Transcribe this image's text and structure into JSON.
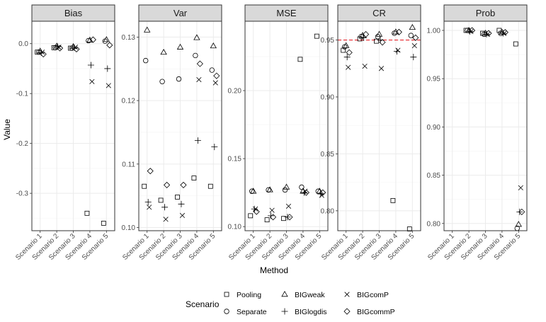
{
  "chart_data": {
    "type": "scatter",
    "xlabel": "Method",
    "ylabel": "Value",
    "categories": [
      "Scenario 1",
      "Scenario 2",
      "Scenario 3",
      "Scenario 4",
      "Scenario 5"
    ],
    "legend": {
      "title": "Scenario",
      "placement": "bottom",
      "entries": [
        {
          "name": "Pooling",
          "shape": "square"
        },
        {
          "name": "Separate",
          "shape": "circle"
        },
        {
          "name": "BIGweak",
          "shape": "triangle"
        },
        {
          "name": "BIGlogdis",
          "shape": "plus"
        },
        {
          "name": "BIGcomP",
          "shape": "cross"
        },
        {
          "name": "BIGcommP",
          "shape": "diamond"
        }
      ]
    },
    "reference_line": {
      "panel": "CR",
      "y": 0.95,
      "color": "#e8242b",
      "style": "dashed"
    },
    "colors": {
      "strip_bg": "#d9d9d9",
      "panel_border": "#333333",
      "grid_major": "#ebebeb",
      "grid_minor": "#f5f5f5",
      "marker": "#000000"
    },
    "panels": [
      {
        "title": "Bias",
        "ylim": [
          -0.375,
          0.045
        ],
        "yticks": [
          0.0,
          -0.1,
          -0.2,
          -0.3
        ],
        "ytick_labels": [
          "0.0",
          "-0.1",
          "-0.2",
          "-0.3"
        ],
        "series": [
          {
            "name": "Pooling",
            "values": [
              -0.017,
              -0.008,
              -0.009,
              -0.34,
              -0.36
            ]
          },
          {
            "name": "Separate",
            "values": [
              -0.017,
              -0.008,
              -0.009,
              0.006,
              0.005
            ]
          },
          {
            "name": "BIGweak",
            "values": [
              -0.015,
              -0.005,
              -0.006,
              0.007,
              0.008
            ]
          },
          {
            "name": "BIGlogdis",
            "values": [
              -0.018,
              -0.006,
              -0.008,
              -0.043,
              -0.05
            ]
          },
          {
            "name": "BIGcomP",
            "values": [
              -0.017,
              -0.007,
              -0.007,
              -0.076,
              -0.084
            ]
          },
          {
            "name": "BIGcommP",
            "values": [
              -0.021,
              -0.009,
              -0.011,
              0.008,
              -0.003
            ]
          }
        ]
      },
      {
        "title": "Var",
        "ylim": [
          0.0995,
          0.1325
        ],
        "yticks": [
          0.1,
          0.11,
          0.12,
          0.13
        ],
        "ytick_labels": [
          "0.10",
          "0.11",
          "0.12",
          "0.13"
        ],
        "series": [
          {
            "name": "Pooling",
            "values": [
              0.1065,
              0.1043,
              0.1048,
              0.1078,
              0.1065
            ]
          },
          {
            "name": "Separate",
            "values": [
              0.1263,
              0.123,
              0.1234,
              0.1271,
              0.1248
            ]
          },
          {
            "name": "BIGweak",
            "values": [
              0.1311,
              0.1276,
              0.1284,
              0.1299,
              0.1286
            ]
          },
          {
            "name": "BIGlogdis",
            "values": [
              0.104,
              0.1032,
              0.1037,
              0.1137,
              0.1127
            ]
          },
          {
            "name": "BIGcomP",
            "values": [
              0.1032,
              0.1013,
              0.1019,
              0.1233,
              0.1228
            ]
          },
          {
            "name": "BIGcommP",
            "values": [
              0.1089,
              0.1067,
              0.1067,
              0.1258,
              0.1239
            ]
          }
        ]
      },
      {
        "title": "MSE",
        "ylim": [
          0.097,
          0.251
        ],
        "yticks": [
          0.1,
          0.15,
          0.2
        ],
        "ytick_labels": [
          "0.10",
          "0.15",
          "0.20"
        ],
        "series": [
          {
            "name": "Pooling",
            "values": [
              0.108,
              0.105,
              0.106,
              0.223,
              0.24
            ]
          },
          {
            "name": "Separate",
            "values": [
              0.126,
              0.127,
              0.127,
              0.129,
              0.126
            ]
          },
          {
            "name": "BIGweak",
            "values": [
              0.126,
              0.127,
              0.129,
              0.126,
              0.126
            ]
          },
          {
            "name": "BIGlogdis",
            "values": [
              0.113,
              0.108,
              0.107,
              0.125,
              0.124
            ]
          },
          {
            "name": "BIGcomP",
            "values": [
              0.113,
              0.112,
              0.115,
              0.126,
              0.123
            ]
          },
          {
            "name": "BIGcommP",
            "values": [
              0.111,
              0.107,
              0.107,
              0.125,
              0.125
            ]
          }
        ]
      },
      {
        "title": "CR",
        "ylim": [
          0.7825,
          0.9665
        ],
        "yticks": [
          0.8,
          0.85,
          0.9,
          0.95
        ],
        "ytick_labels": [
          "0.80",
          "0.85",
          "0.90",
          "0.95"
        ],
        "series": [
          {
            "name": "Pooling",
            "values": [
              0.941,
              0.951,
              0.949,
              0.809,
              0.784
            ]
          },
          {
            "name": "Separate",
            "values": [
              0.944,
              0.953,
              0.953,
              0.956,
              0.954
            ]
          },
          {
            "name": "BIGweak",
            "values": [
              0.945,
              0.954,
              0.955,
              0.957,
              0.961
            ]
          },
          {
            "name": "BIGlogdis",
            "values": [
              0.935,
              0.952,
              0.95,
              0.94,
              0.935
            ]
          },
          {
            "name": "BIGcomP",
            "values": [
              0.926,
              0.927,
              0.925,
              0.941,
              0.945
            ]
          },
          {
            "name": "BIGcommP",
            "values": [
              0.939,
              0.955,
              0.948,
              0.957,
              0.952
            ]
          }
        ]
      },
      {
        "title": "Prob",
        "ylim": [
          0.7925,
          1.0095
        ],
        "yticks": [
          0.8,
          0.85,
          0.9,
          0.95,
          1.0
        ],
        "ytick_labels": [
          "0.80",
          "0.85",
          "0.90",
          "0.95",
          "1.00"
        ],
        "series": [
          {
            "name": "Pooling",
            "values": [
              null,
              1.0,
              0.997,
              1.0,
              0.986
            ]
          },
          {
            "name": "Separate",
            "values": [
              null,
              1.0,
              0.996,
              0.997,
              0.795
            ]
          },
          {
            "name": "BIGweak",
            "values": [
              null,
              1.0,
              0.997,
              0.998,
              0.799
            ]
          },
          {
            "name": "BIGlogdis",
            "values": [
              null,
              0.999,
              0.996,
              0.997,
              0.812
            ]
          },
          {
            "name": "BIGcomP",
            "values": [
              null,
              0.999,
              0.996,
              0.997,
              0.837
            ]
          },
          {
            "name": "BIGcommP",
            "values": [
              null,
              1.0,
              0.997,
              0.998,
              0.812
            ]
          }
        ]
      }
    ]
  }
}
